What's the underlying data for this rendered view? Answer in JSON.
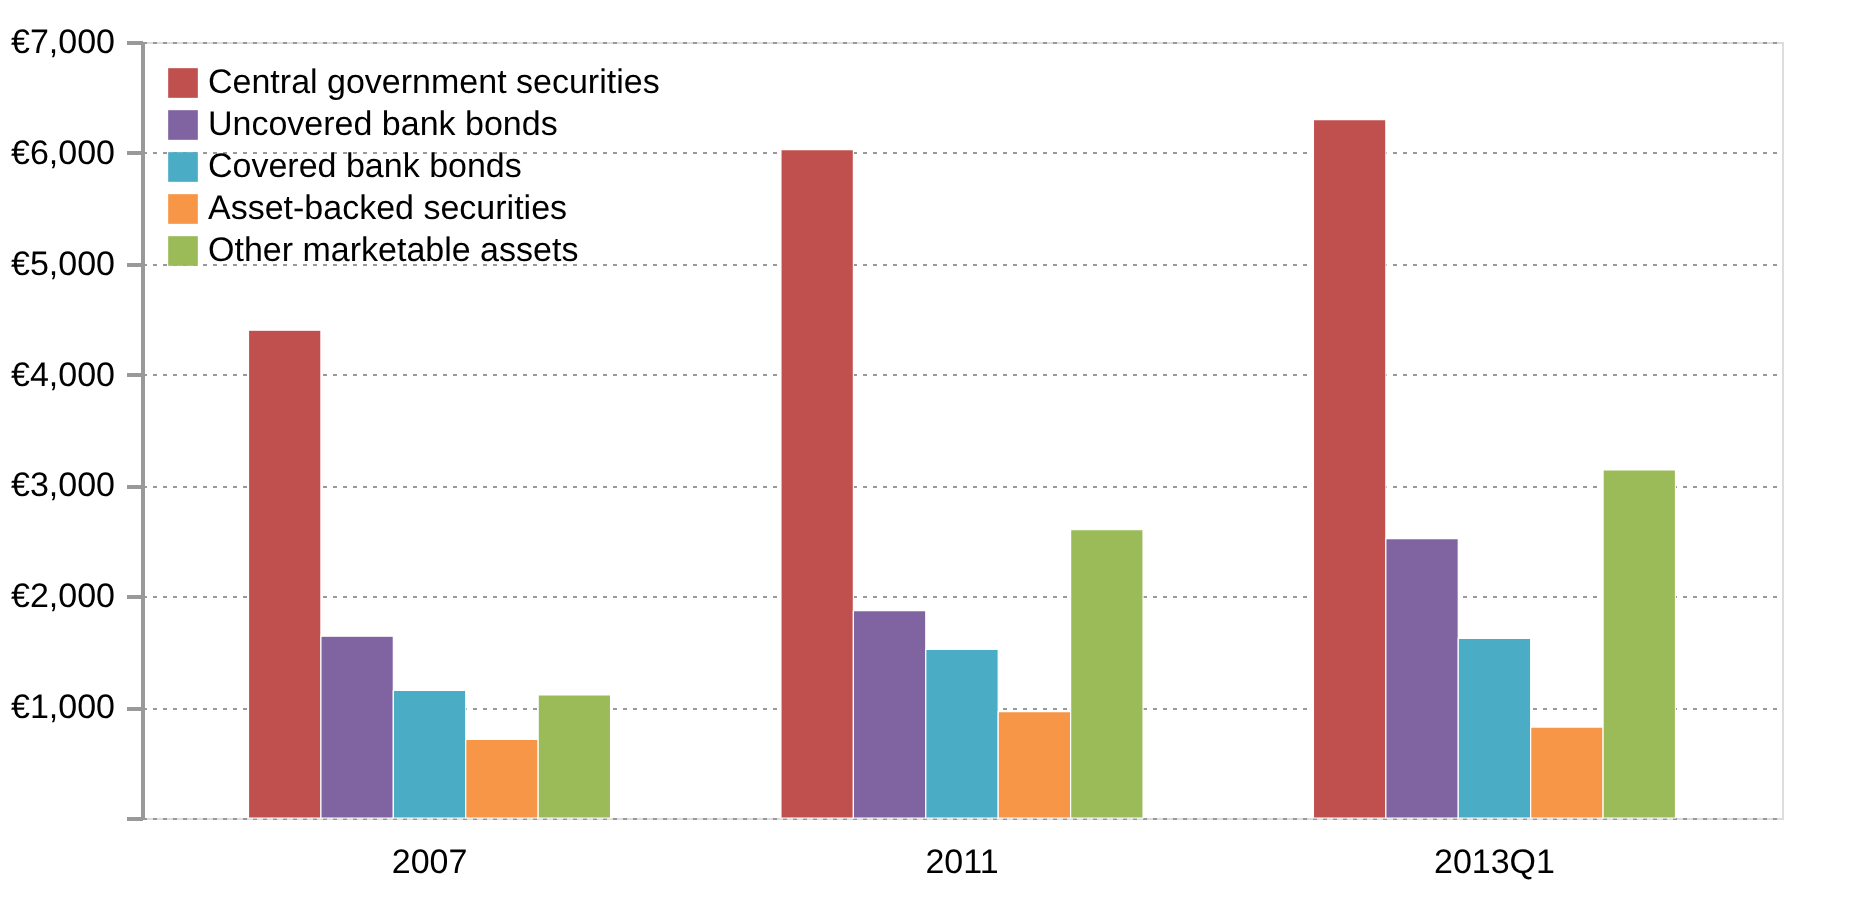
{
  "chart_data": {
    "type": "bar",
    "categories": [
      "2007",
      "2011",
      "2013Q1"
    ],
    "series": [
      {
        "name": "Central government securities",
        "color": "#c0504d",
        "values": [
          4400,
          6030,
          6300
        ]
      },
      {
        "name": "Uncovered bank bonds",
        "color": "#8064a2",
        "values": [
          1640,
          1870,
          2520
        ]
      },
      {
        "name": "Covered bank bonds",
        "color": "#4bacc6",
        "values": [
          1150,
          1520,
          1620
        ]
      },
      {
        "name": "Asset-backed securities",
        "color": "#f79646",
        "values": [
          710,
          960,
          820
        ]
      },
      {
        "name": "Other marketable assets",
        "color": "#9bbb59",
        "values": [
          1110,
          2600,
          3140
        ]
      }
    ],
    "ylim": [
      0,
      7000
    ],
    "yticks": [
      {
        "value": 0,
        "label": null
      },
      {
        "value": 1000,
        "label": "€1,000"
      },
      {
        "value": 2000,
        "label": "€2,000"
      },
      {
        "value": 3000,
        "label": "€3,000"
      },
      {
        "value": 4000,
        "label": "€4,000"
      },
      {
        "value": 5000,
        "label": "€5,000"
      },
      {
        "value": 6000,
        "label": "€6,000"
      },
      {
        "value": 7000,
        "label": "€7,000"
      }
    ],
    "grid": "y",
    "legend": "top left"
  }
}
